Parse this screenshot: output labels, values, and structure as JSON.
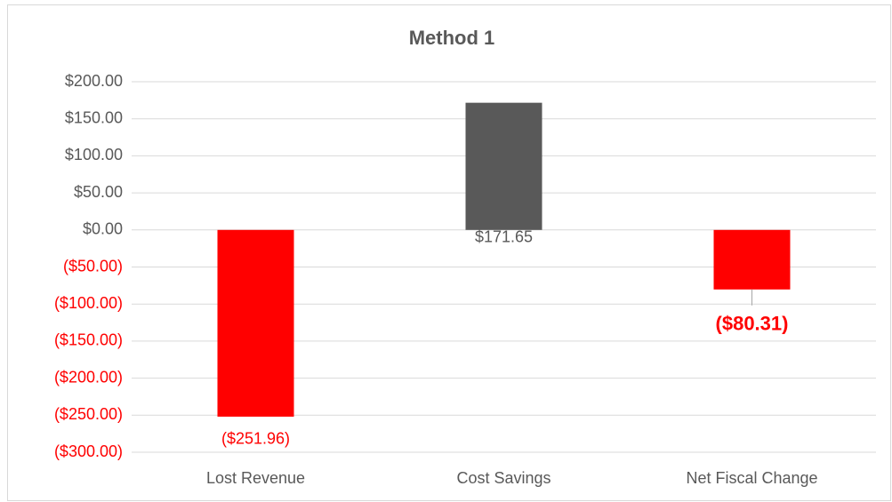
{
  "chart_data": {
    "type": "bar",
    "title": "Method 1",
    "categories": [
      "Lost Revenue",
      "Cost Savings",
      "Net Fiscal Change"
    ],
    "values": [
      -251.96,
      171.65,
      -80.31
    ],
    "value_labels": [
      "($251.96)",
      "$171.65",
      "($80.31)"
    ],
    "colors": [
      "#ff0000",
      "#595959",
      "#ff0000"
    ],
    "ylim": [
      -300,
      200
    ],
    "yticks": [
      {
        "value": -300,
        "label": "($300.00)"
      },
      {
        "value": -250,
        "label": "($250.00)"
      },
      {
        "value": -200,
        "label": "($200.00)"
      },
      {
        "value": -150,
        "label": "($150.00)"
      },
      {
        "value": -100,
        "label": "($100.00)"
      },
      {
        "value": -50,
        "label": "($50.00)"
      },
      {
        "value": 0,
        "label": "$0.00"
      },
      {
        "value": 50,
        "label": "$50.00"
      },
      {
        "value": 100,
        "label": "$100.00"
      },
      {
        "value": 150,
        "label": "$150.00"
      },
      {
        "value": 200,
        "label": "$200.00"
      }
    ],
    "grid": true
  }
}
